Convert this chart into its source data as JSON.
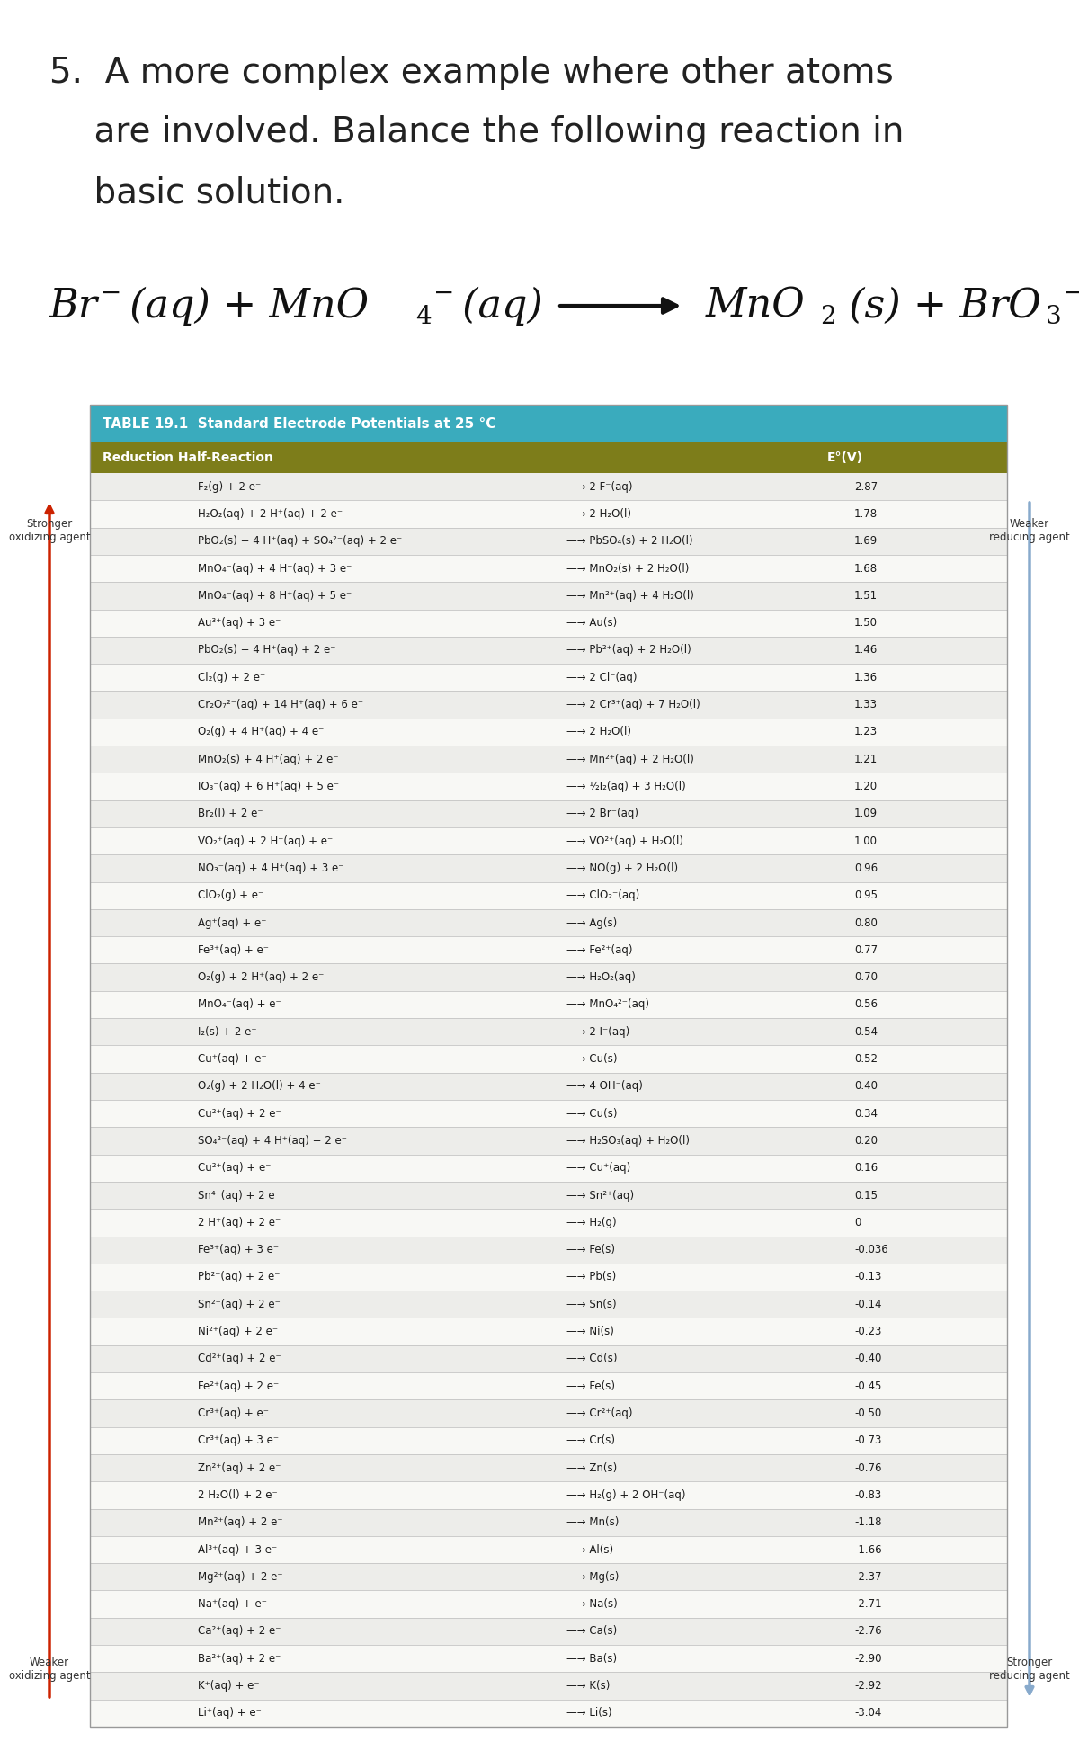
{
  "title_line1": "5.  A more complex example where other atoms",
  "title_line2": "    are involved. Balance the following reaction in",
  "title_line3": "    basic solution.",
  "table_title": "TABLE 19.1  Standard Electrode Potentials at 25 °C",
  "col_header_left": "Reduction Half-Reaction",
  "col_header_right": "E°(V)",
  "table_header_bg": "#3aabbd",
  "col_header_bg": "#7d7d1a",
  "table_bg_even": "#ededea",
  "table_bg_odd": "#f8f8f5",
  "rows": [
    [
      "F₂(g) + 2 e⁻",
      "—→ 2 F⁻(aq)",
      "2.87"
    ],
    [
      "H₂O₂(aq) + 2 H⁺(aq) + 2 e⁻",
      "—→ 2 H₂O(l)",
      "1.78"
    ],
    [
      "PbO₂(s) + 4 H⁺(aq) + SO₄²⁻(aq) + 2 e⁻",
      "—→ PbSO₄(s) + 2 H₂O(l)",
      "1.69"
    ],
    [
      "MnO₄⁻(aq) + 4 H⁺(aq) + 3 e⁻",
      "—→ MnO₂(s) + 2 H₂O(l)",
      "1.68"
    ],
    [
      "MnO₄⁻(aq) + 8 H⁺(aq) + 5 e⁻",
      "—→ Mn²⁺(aq) + 4 H₂O(l)",
      "1.51"
    ],
    [
      "Au³⁺(aq) + 3 e⁻",
      "—→ Au(s)",
      "1.50"
    ],
    [
      "PbO₂(s) + 4 H⁺(aq) + 2 e⁻",
      "—→ Pb²⁺(aq) + 2 H₂O(l)",
      "1.46"
    ],
    [
      "Cl₂(g) + 2 e⁻",
      "—→ 2 Cl⁻(aq)",
      "1.36"
    ],
    [
      "Cr₂O₇²⁻(aq) + 14 H⁺(aq) + 6 e⁻",
      "—→ 2 Cr³⁺(aq) + 7 H₂O(l)",
      "1.33"
    ],
    [
      "O₂(g) + 4 H⁺(aq) + 4 e⁻",
      "—→ 2 H₂O(l)",
      "1.23"
    ],
    [
      "MnO₂(s) + 4 H⁺(aq) + 2 e⁻",
      "—→ Mn²⁺(aq) + 2 H₂O(l)",
      "1.21"
    ],
    [
      "IO₃⁻(aq) + 6 H⁺(aq) + 5 e⁻",
      "—→ ½I₂(aq) + 3 H₂O(l)",
      "1.20"
    ],
    [
      "Br₂(l) + 2 e⁻",
      "—→ 2 Br⁻(aq)",
      "1.09"
    ],
    [
      "VO₂⁺(aq) + 2 H⁺(aq) + e⁻",
      "—→ VO²⁺(aq) + H₂O(l)",
      "1.00"
    ],
    [
      "NO₃⁻(aq) + 4 H⁺(aq) + 3 e⁻",
      "—→ NO(g) + 2 H₂O(l)",
      "0.96"
    ],
    [
      "ClO₂(g) + e⁻",
      "—→ ClO₂⁻(aq)",
      "0.95"
    ],
    [
      "Ag⁺(aq) + e⁻",
      "—→ Ag(s)",
      "0.80"
    ],
    [
      "Fe³⁺(aq) + e⁻",
      "—→ Fe²⁺(aq)",
      "0.77"
    ],
    [
      "O₂(g) + 2 H⁺(aq) + 2 e⁻",
      "—→ H₂O₂(aq)",
      "0.70"
    ],
    [
      "MnO₄⁻(aq) + e⁻",
      "—→ MnO₄²⁻(aq)",
      "0.56"
    ],
    [
      "I₂(s) + 2 e⁻",
      "—→ 2 I⁻(aq)",
      "0.54"
    ],
    [
      "Cu⁺(aq) + e⁻",
      "—→ Cu(s)",
      "0.52"
    ],
    [
      "O₂(g) + 2 H₂O(l) + 4 e⁻",
      "—→ 4 OH⁻(aq)",
      "0.40"
    ],
    [
      "Cu²⁺(aq) + 2 e⁻",
      "—→ Cu(s)",
      "0.34"
    ],
    [
      "SO₄²⁻(aq) + 4 H⁺(aq) + 2 e⁻",
      "—→ H₂SO₃(aq) + H₂O(l)",
      "0.20"
    ],
    [
      "Cu²⁺(aq) + e⁻",
      "—→ Cu⁺(aq)",
      "0.16"
    ],
    [
      "Sn⁴⁺(aq) + 2 e⁻",
      "—→ Sn²⁺(aq)",
      "0.15"
    ],
    [
      "2 H⁺(aq) + 2 e⁻",
      "—→ H₂(g)",
      "0"
    ],
    [
      "Fe³⁺(aq) + 3 e⁻",
      "—→ Fe(s)",
      "-0.036"
    ],
    [
      "Pb²⁺(aq) + 2 e⁻",
      "—→ Pb(s)",
      "-0.13"
    ],
    [
      "Sn²⁺(aq) + 2 e⁻",
      "—→ Sn(s)",
      "-0.14"
    ],
    [
      "Ni²⁺(aq) + 2 e⁻",
      "—→ Ni(s)",
      "-0.23"
    ],
    [
      "Cd²⁺(aq) + 2 e⁻",
      "—→ Cd(s)",
      "-0.40"
    ],
    [
      "Fe²⁺(aq) + 2 e⁻",
      "—→ Fe(s)",
      "-0.45"
    ],
    [
      "Cr³⁺(aq) + e⁻",
      "—→ Cr²⁺(aq)",
      "-0.50"
    ],
    [
      "Cr³⁺(aq) + 3 e⁻",
      "—→ Cr(s)",
      "-0.73"
    ],
    [
      "Zn²⁺(aq) + 2 e⁻",
      "—→ Zn(s)",
      "-0.76"
    ],
    [
      "2 H₂O(l) + 2 e⁻",
      "—→ H₂(g) + 2 OH⁻(aq)",
      "-0.83"
    ],
    [
      "Mn²⁺(aq) + 2 e⁻",
      "—→ Mn(s)",
      "-1.18"
    ],
    [
      "Al³⁺(aq) + 3 e⁻",
      "—→ Al(s)",
      "-1.66"
    ],
    [
      "Mg²⁺(aq) + 2 e⁻",
      "—→ Mg(s)",
      "-2.37"
    ],
    [
      "Na⁺(aq) + e⁻",
      "—→ Na(s)",
      "-2.71"
    ],
    [
      "Ca²⁺(aq) + 2 e⁻",
      "—→ Ca(s)",
      "-2.76"
    ],
    [
      "Ba²⁺(aq) + 2 e⁻",
      "—→ Ba(s)",
      "-2.90"
    ],
    [
      "K⁺(aq) + e⁻",
      "—→ K(s)",
      "-2.92"
    ],
    [
      "Li⁺(aq) + e⁻",
      "—→ Li(s)",
      "-3.04"
    ]
  ],
  "stronger_ox": "Stronger\noxidizing agent",
  "weaker_red": "Weaker\nreducing agent",
  "weaker_ox": "Weaker\noxidizing agent",
  "stronger_red": "Stronger\nreducing agent",
  "bg_color": "#ffffff",
  "text_color": "#222222",
  "row_line_color": "#bbbbbb",
  "arrow_color_red": "#cc2200",
  "arrow_color_blue": "#88aacc"
}
